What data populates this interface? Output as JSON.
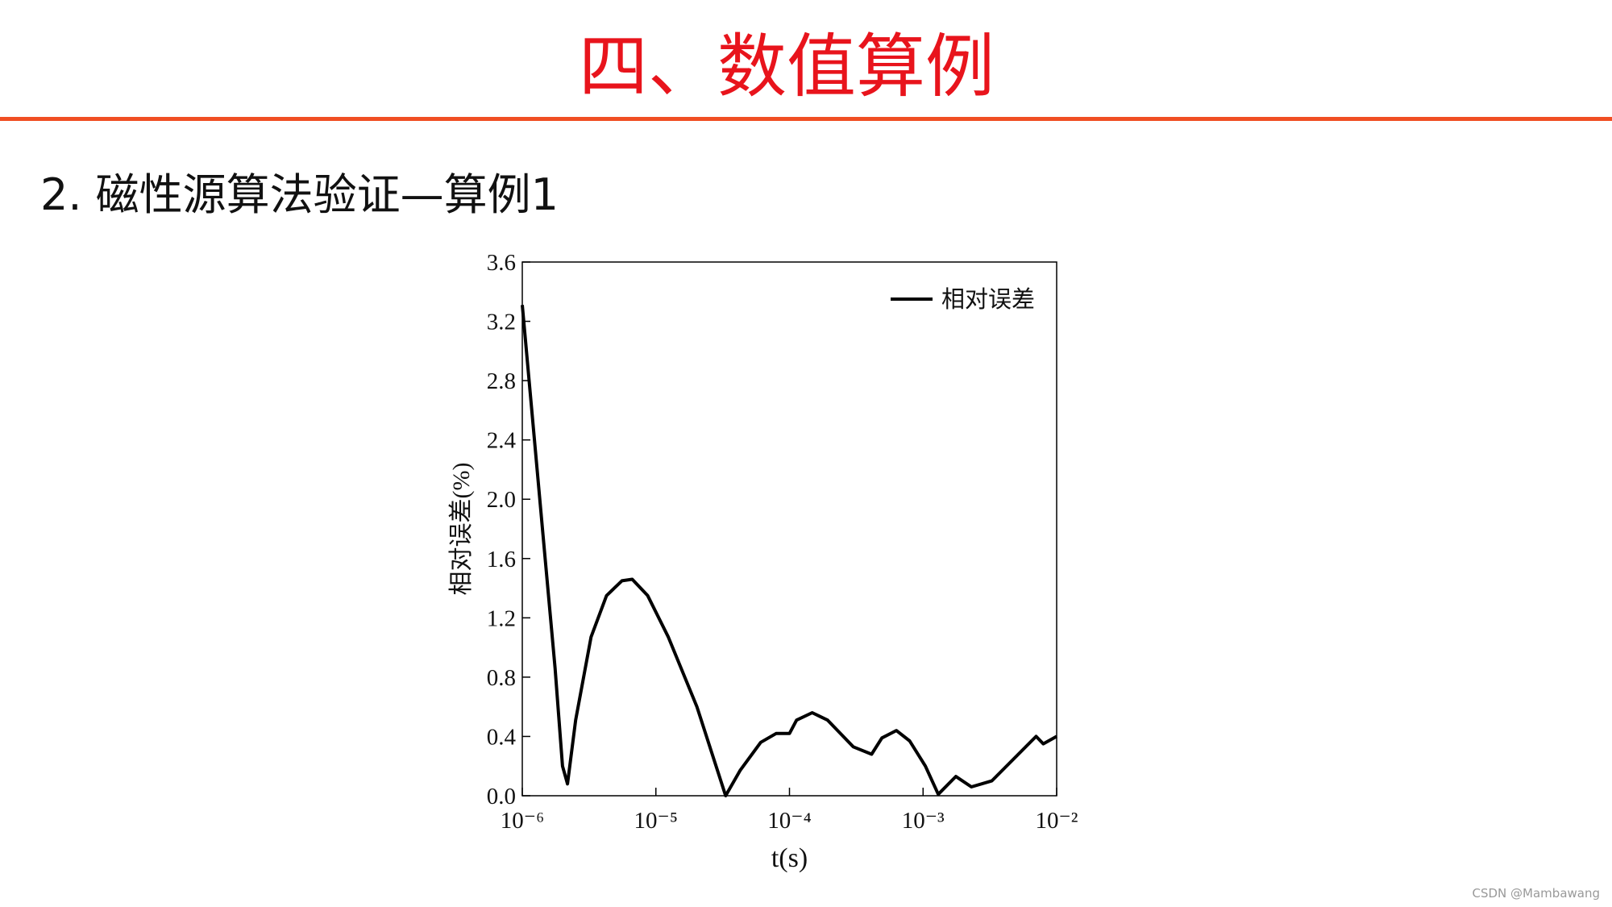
{
  "header": {
    "title": "四、数值算例"
  },
  "subtitle": "2.  磁性源算法验证—算例1",
  "chart_data": {
    "type": "line",
    "xlabel": "t(s)",
    "ylabel": "相对误差(%)",
    "xscale": "log",
    "grid": false,
    "legend": "upper right",
    "xlim": [
      1e-06,
      0.01
    ],
    "xticks": [
      {
        "value": 1e-06,
        "label": "10⁻⁶"
      },
      {
        "value": 1e-05,
        "label": "10⁻⁵"
      },
      {
        "value": 0.0001,
        "label": "10⁻⁴"
      },
      {
        "value": 0.001,
        "label": "10⁻³"
      },
      {
        "value": 0.01,
        "label": "10⁻²"
      }
    ],
    "ylim": [
      0,
      3.6
    ],
    "yticks": [
      {
        "value": 0,
        "label": "0.0"
      },
      0.4,
      0.8,
      1.2,
      1.6,
      {
        "value": 2,
        "label": "2.0"
      },
      2.4,
      2.8,
      3.2,
      3.6
    ],
    "x": [
      1e-06,
      1.43e-06,
      1.76e-06,
      2e-06,
      2.18e-06,
      2.51e-06,
      3.27e-06,
      4.27e-06,
      5.57e-06,
      6.65e-06,
      8.68e-06,
      1.24e-05,
      2.03e-05,
      3.33e-05,
      4.27e-05,
      6.09e-05,
      7.94e-05,
      0.0001,
      0.000113,
      0.000148,
      0.000193,
      0.0003,
      0.000412,
      0.000492,
      0.000631,
      0.000794,
      0.00104,
      0.0013,
      0.00176,
      0.0023,
      0.00327,
      0.00702,
      0.00794,
      0.01
    ],
    "series": [
      {
        "name": "相对误差",
        "color": "#000000",
        "values": [
          3.31,
          1.76,
          0.86,
          0.2,
          0.08,
          0.51,
          1.07,
          1.35,
          1.45,
          1.46,
          1.35,
          1.07,
          0.6,
          0.0,
          0.17,
          0.36,
          0.42,
          0.42,
          0.51,
          0.56,
          0.51,
          0.33,
          0.28,
          0.39,
          0.44,
          0.37,
          0.2,
          0.01,
          0.13,
          0.06,
          0.1,
          0.4,
          0.35,
          0.4
        ]
      }
    ]
  },
  "watermark": "CSDN @Mambawang"
}
